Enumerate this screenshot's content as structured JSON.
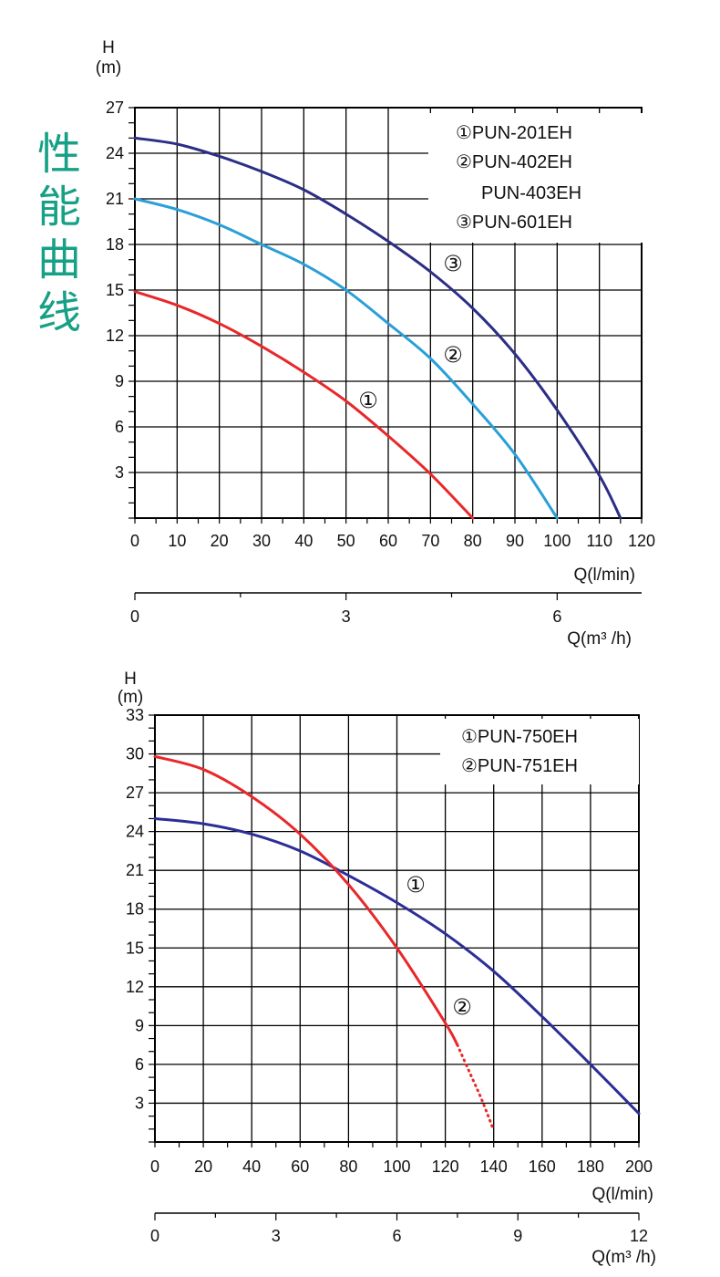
{
  "side_title": [
    "性",
    "能",
    "曲",
    "线"
  ],
  "chart_data": [
    {
      "type": "line",
      "ylabel": "H",
      "ylabel_unit": "(m)",
      "xlabel": "Q(l/min)",
      "xlabel2": "Q(m³ /h)",
      "xlim": [
        0,
        120
      ],
      "ylim": [
        0,
        27
      ],
      "x_ticks": [
        0,
        10,
        20,
        30,
        40,
        50,
        60,
        70,
        80,
        90,
        100,
        110,
        120
      ],
      "y_ticks": [
        3,
        6,
        9,
        12,
        15,
        18,
        21,
        24,
        27
      ],
      "x2_ticks": [
        0,
        3,
        6
      ],
      "legend": [
        "①PUN-201EH",
        "②PUN-402EH",
        "PUN-403EH",
        "③PUN-601EH"
      ],
      "grid": true,
      "series": [
        {
          "name": "①",
          "color": "#e8282a",
          "x": [
            0,
            10,
            20,
            30,
            40,
            50,
            60,
            70,
            80
          ],
          "y": [
            14.9,
            14.0,
            12.8,
            11.3,
            9.6,
            7.7,
            5.4,
            2.9,
            0
          ]
        },
        {
          "name": "②",
          "color": "#2a9fd8",
          "x": [
            0,
            10,
            20,
            30,
            40,
            50,
            60,
            70,
            80,
            90,
            100
          ],
          "y": [
            21.0,
            20.3,
            19.3,
            18.0,
            16.7,
            15.0,
            12.8,
            10.5,
            7.5,
            4.2,
            0
          ]
        },
        {
          "name": "③",
          "color": "#2c2e86",
          "x": [
            0,
            10,
            20,
            30,
            40,
            50,
            60,
            70,
            80,
            90,
            100,
            110,
            115
          ],
          "y": [
            25.0,
            24.6,
            23.8,
            22.8,
            21.6,
            20.0,
            18.2,
            16.2,
            13.8,
            10.8,
            7.1,
            2.8,
            0
          ]
        }
      ]
    },
    {
      "type": "line",
      "ylabel": "H",
      "ylabel_unit": "(m)",
      "xlabel": "Q(l/min)",
      "xlabel2": "Q(m³ /h)",
      "xlim": [
        0,
        200
      ],
      "ylim": [
        0,
        33
      ],
      "x_ticks": [
        0,
        20,
        40,
        60,
        80,
        100,
        120,
        140,
        160,
        180,
        200
      ],
      "y_ticks": [
        3,
        6,
        9,
        12,
        15,
        18,
        21,
        24,
        27,
        30,
        33
      ],
      "x2_ticks": [
        0,
        3,
        6,
        9,
        12
      ],
      "legend": [
        "①PUN-750EH",
        "②PUN-751EH"
      ],
      "grid": true,
      "series": [
        {
          "name": "①",
          "color": "#2c2e96",
          "x": [
            0,
            20,
            40,
            60,
            80,
            100,
            120,
            140,
            160,
            180,
            200
          ],
          "y": [
            25.0,
            24.6,
            23.8,
            22.5,
            20.6,
            18.5,
            16.1,
            13.2,
            9.7,
            6.0,
            2.2
          ]
        },
        {
          "name": "②",
          "color": "#e8282a",
          "x": [
            0,
            20,
            40,
            60,
            80,
            100,
            120,
            125
          ],
          "y": [
            29.8,
            28.8,
            26.7,
            23.8,
            19.9,
            15.0,
            9.2,
            7.5
          ]
        },
        {
          "name": "②-extension",
          "color": "#e8282a",
          "dotted": true,
          "x": [
            125,
            130,
            135,
            140
          ],
          "y": [
            7.5,
            5.4,
            3.3,
            0.9
          ]
        }
      ]
    }
  ]
}
